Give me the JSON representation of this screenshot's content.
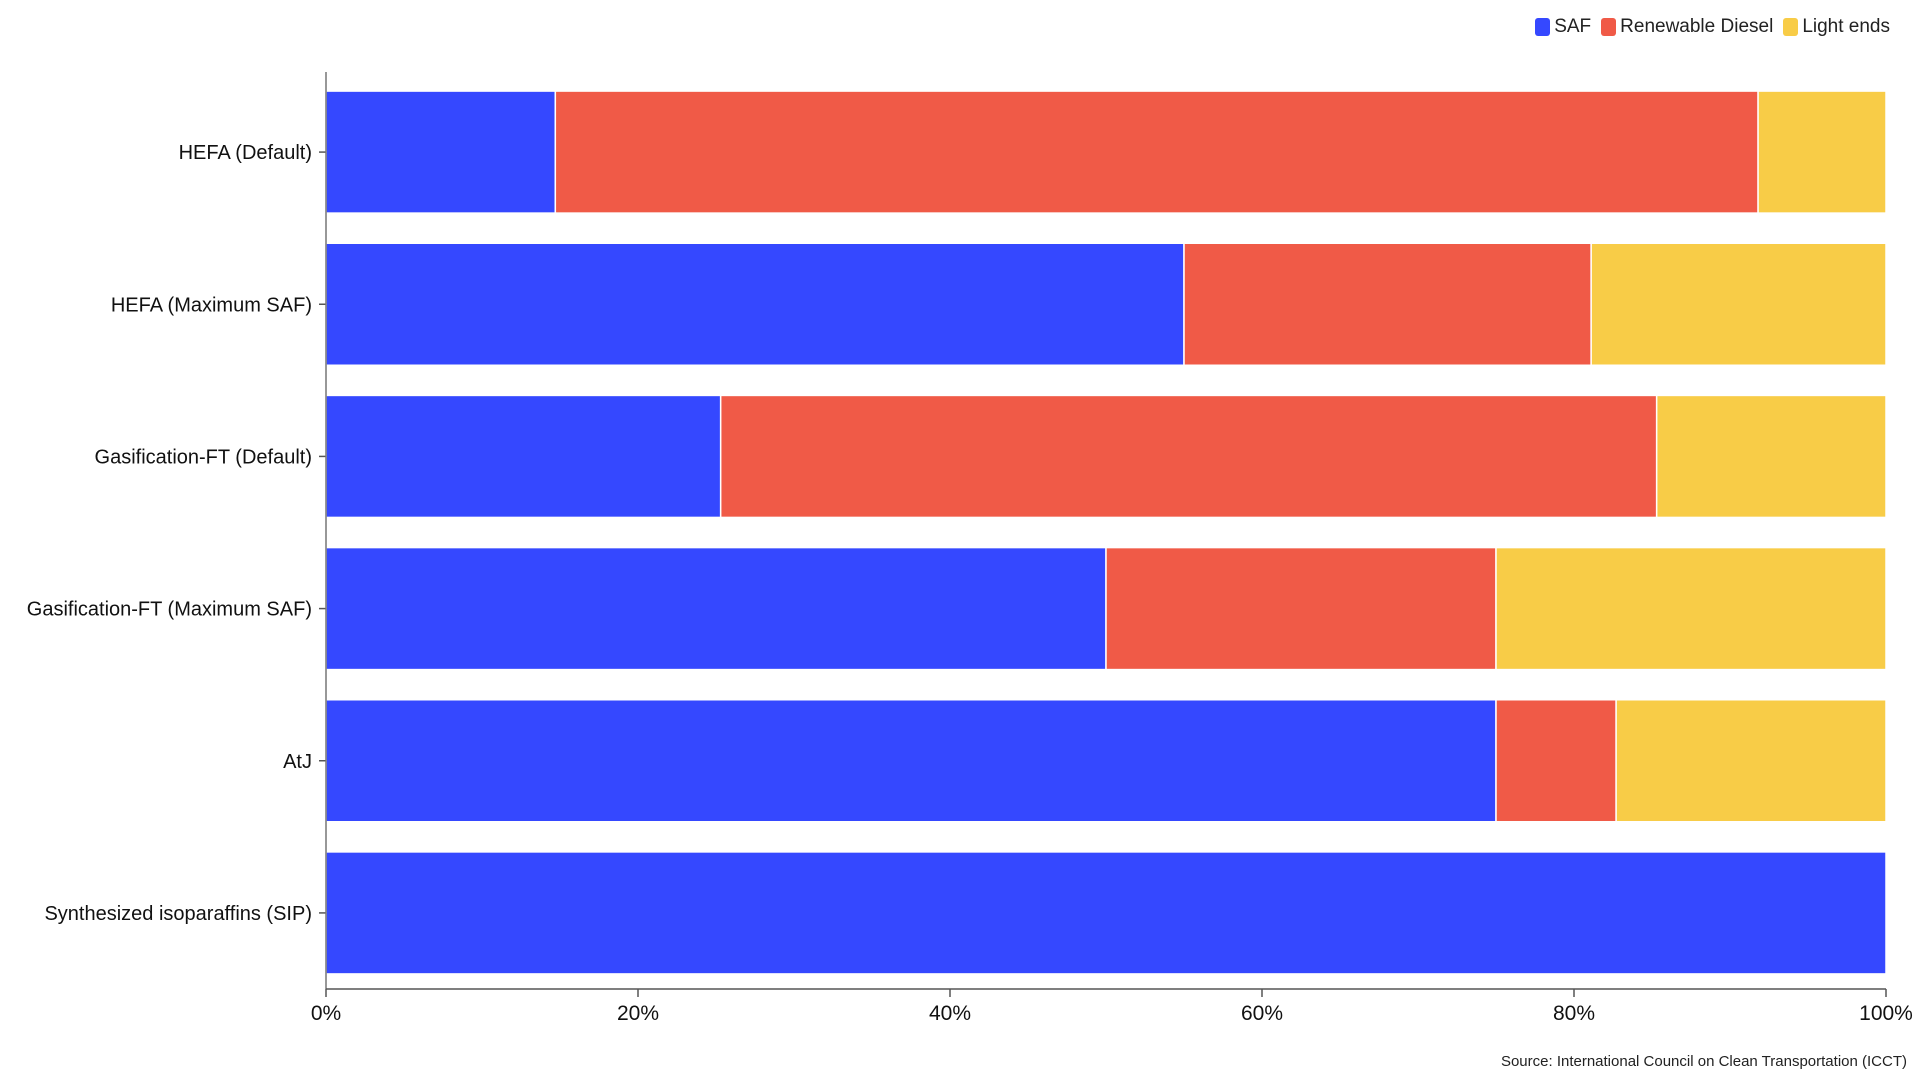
{
  "chart_data": {
    "type": "bar",
    "orientation": "horizontal",
    "stacked": true,
    "categories": [
      "HEFA (Default)",
      "HEFA (Maximum SAF)",
      "Gasification-FT (Default)",
      "Gasification-FT (Maximum SAF)",
      "AtJ",
      "Synthesized isoparaffins (SIP)"
    ],
    "series": [
      {
        "name": "SAF",
        "color": "#3548FF",
        "values": [
          14.7,
          55.0,
          25.3,
          50.0,
          75.0,
          100.0
        ]
      },
      {
        "name": "Renewable Diesel",
        "color": "#F05A47",
        "values": [
          77.1,
          26.1,
          60.0,
          25.0,
          7.7,
          0.0
        ]
      },
      {
        "name": "Light ends",
        "color": "#F8CC47",
        "values": [
          8.2,
          18.9,
          14.7,
          25.0,
          17.3,
          0.0
        ]
      }
    ],
    "xlim": [
      0,
      100
    ],
    "xticks": [
      "0%",
      "20%",
      "40%",
      "60%",
      "80%",
      "100%"
    ],
    "xlabel": "",
    "ylabel": "",
    "title": "",
    "grid": false,
    "legend_position": "top-right"
  },
  "source_text": "Source: International Council on Clean Transportation (ICCT)"
}
